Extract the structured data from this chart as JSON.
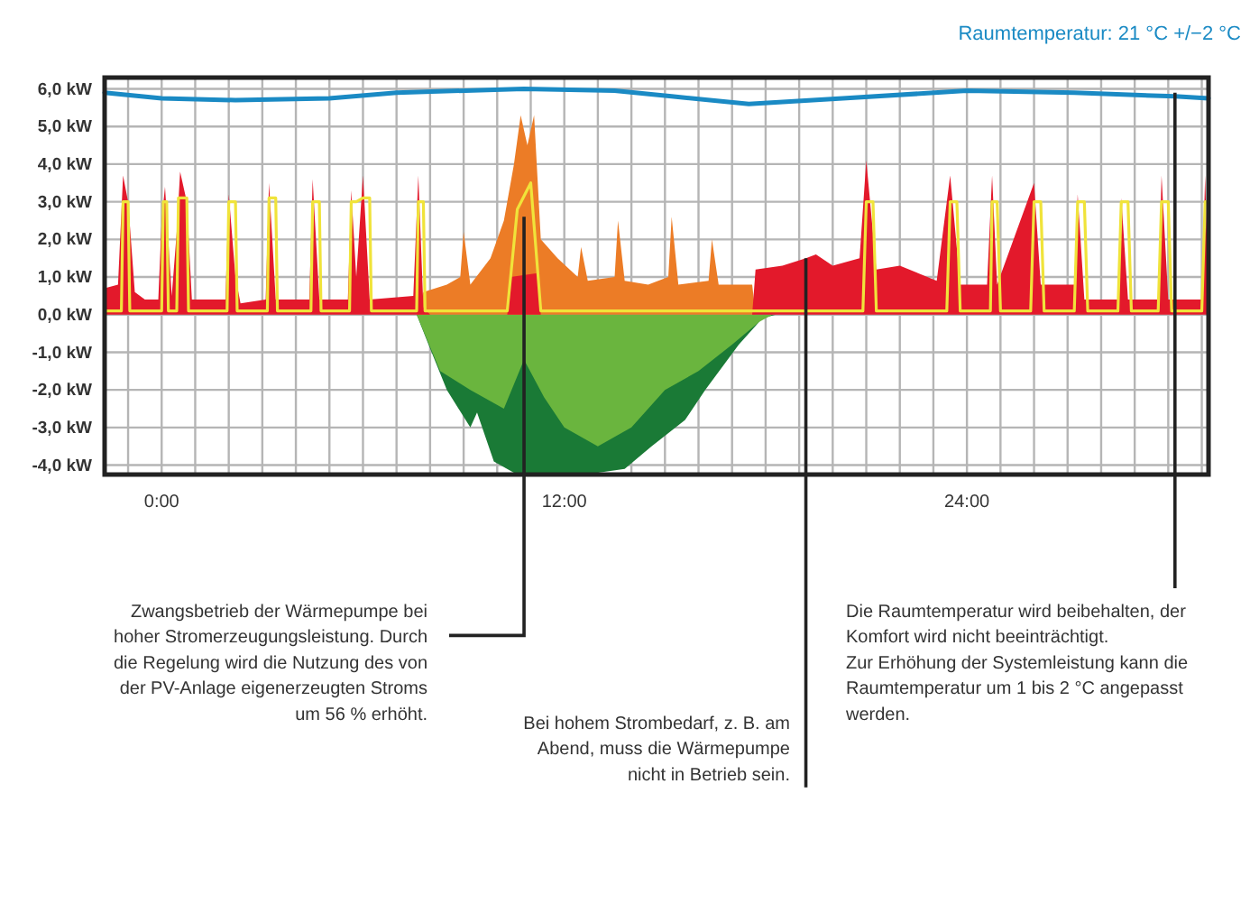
{
  "chart_data": {
    "type": "area",
    "xlim": [
      -1.7,
      31.2
    ],
    "ylim": [
      -4.25,
      6.3
    ],
    "xticks": [
      {
        "value": -1,
        "label": null
      },
      {
        "value": 0,
        "label": "0:00"
      },
      {
        "value": 1,
        "label": null
      },
      {
        "value": 2,
        "label": null
      },
      {
        "value": 3,
        "label": null
      },
      {
        "value": 4,
        "label": null
      },
      {
        "value": 5,
        "label": null
      },
      {
        "value": 6,
        "label": null
      },
      {
        "value": 7,
        "label": null
      },
      {
        "value": 8,
        "label": null
      },
      {
        "value": 9,
        "label": null
      },
      {
        "value": 10,
        "label": null
      },
      {
        "value": 11,
        "label": null
      },
      {
        "value": 12,
        "label": "12:00"
      },
      {
        "value": 13,
        "label": null
      },
      {
        "value": 14,
        "label": null
      },
      {
        "value": 15,
        "label": null
      },
      {
        "value": 16,
        "label": null
      },
      {
        "value": 17,
        "label": null
      },
      {
        "value": 18,
        "label": null
      },
      {
        "value": 19,
        "label": null
      },
      {
        "value": 20,
        "label": null
      },
      {
        "value": 21,
        "label": null
      },
      {
        "value": 22,
        "label": null
      },
      {
        "value": 23,
        "label": null
      },
      {
        "value": 24,
        "label": "24:00"
      },
      {
        "value": 25,
        "label": null
      },
      {
        "value": 26,
        "label": null
      },
      {
        "value": 27,
        "label": null
      },
      {
        "value": 28,
        "label": null
      },
      {
        "value": 29,
        "label": null
      },
      {
        "value": 30,
        "label": null
      },
      {
        "value": 31,
        "label": null
      }
    ],
    "yticks": [
      {
        "value": -4,
        "label": "-4,0 kW"
      },
      {
        "value": -3,
        "label": "-3,0 kW"
      },
      {
        "value": -2,
        "label": "-2,0 kW"
      },
      {
        "value": -1,
        "label": "-1,0 kW"
      },
      {
        "value": 0,
        "label": "0,0 kW"
      },
      {
        "value": 1,
        "label": "1,0 kW"
      },
      {
        "value": 2,
        "label": "2,0 kW"
      },
      {
        "value": 3,
        "label": "3,0 kW"
      },
      {
        "value": 4,
        "label": "4,0 kW"
      },
      {
        "value": 5,
        "label": "5,0 kW"
      },
      {
        "value": 6,
        "label": "6,0 kW"
      }
    ],
    "grid": true,
    "series": [
      {
        "color": "#1a7a36",
        "x": [
          7.6,
          8.0,
          8.5,
          9.2,
          9.4,
          9.9,
          10.5,
          11.0,
          12.0,
          13.0,
          13.8,
          14.6,
          15.6,
          16.2,
          17.2,
          17.9,
          18.3
        ],
        "values": [
          0,
          -0.9,
          -2.0,
          -3.0,
          -2.6,
          -3.9,
          -4.2,
          -4.2,
          -4.2,
          -4.2,
          -4.1,
          -3.5,
          -2.8,
          -2.0,
          -0.8,
          -0.1,
          0
        ]
      },
      {
        "color": "#6ab53e",
        "x": [
          7.6,
          8.3,
          9.2,
          10.2,
          10.8,
          11.4,
          12.0,
          13.0,
          14.0,
          15.0,
          16.0,
          17.0,
          17.8,
          18.2
        ],
        "values": [
          0,
          -1.5,
          -2.0,
          -2.5,
          -1.2,
          -2.2,
          -3.0,
          -3.5,
          -3.0,
          -2.0,
          -1.5,
          -0.8,
          -0.2,
          0
        ]
      },
      {
        "color": "#ec7c26",
        "x": [
          7.6,
          7.8,
          8.5,
          8.9,
          9.0,
          9.2,
          9.8,
          10.2,
          10.5,
          10.7,
          10.9,
          11.1,
          11.3,
          11.8,
          12.4,
          12.5,
          12.7,
          13.5,
          13.6,
          13.8,
          14.5,
          15.1,
          15.2,
          15.4,
          16.3,
          16.4,
          16.6,
          17.6,
          17.7
        ],
        "values": [
          0,
          0.6,
          0.8,
          1.0,
          2.2,
          0.8,
          1.5,
          2.5,
          4.0,
          5.3,
          4.5,
          5.3,
          2.0,
          1.5,
          1.0,
          1.8,
          0.9,
          1.0,
          2.5,
          0.9,
          0.8,
          1.0,
          2.6,
          0.8,
          0.9,
          2.0,
          0.8,
          0.8,
          0
        ]
      },
      {
        "color": "#e3192b",
        "x": [
          -1.7,
          -1.3,
          -1.15,
          -1.0,
          -0.8,
          -0.5,
          -0.1,
          0.0,
          0.1,
          0.3,
          0.45,
          0.55,
          0.75,
          0.9,
          1.9,
          2.0,
          2.2,
          2.35,
          3.1,
          3.2,
          3.4,
          4.4,
          4.5,
          4.7,
          5.55,
          5.65,
          5.8,
          6.0,
          6.2,
          7.5,
          7.65,
          7.8,
          8.0,
          10.3,
          10.4,
          11.2,
          11.3,
          17.6,
          17.7,
          18.5,
          19.2,
          19.5,
          20.0,
          20.8,
          21.0,
          21.3,
          22.0,
          23.1,
          23.5,
          23.8,
          24.6,
          24.75,
          24.9,
          26.0,
          26.2,
          27.2,
          27.3,
          27.5,
          28.5,
          28.6,
          28.8,
          29.7,
          29.8,
          30.0,
          31.0,
          31.1,
          31.2
        ],
        "values": [
          0.7,
          0.8,
          3.7,
          3.0,
          0.6,
          0.4,
          0.4,
          2.5,
          3.4,
          0.5,
          2.2,
          3.8,
          3.0,
          0.4,
          0.4,
          3.2,
          1.0,
          0.3,
          0.4,
          3.5,
          0.4,
          0.4,
          3.6,
          0.4,
          0.4,
          3.3,
          1.0,
          3.7,
          0.4,
          0.5,
          3.7,
          0.2,
          0,
          0,
          1.0,
          1.1,
          0,
          0,
          1.2,
          1.3,
          1.5,
          1.6,
          1.3,
          1.5,
          4.1,
          1.2,
          1.3,
          0.9,
          3.7,
          0.8,
          0.8,
          3.7,
          0.8,
          3.5,
          0.8,
          0.8,
          3.2,
          0.4,
          0.4,
          3.1,
          0.4,
          0.4,
          3.7,
          0.4,
          0.4,
          3.7,
          0.3
        ]
      },
      {
        "type": "line",
        "color": "#f0e33a",
        "x": [
          -1.7,
          -1.2,
          -1.15,
          -1.0,
          -0.95,
          0.0,
          0.05,
          0.15,
          0.2,
          0.45,
          0.5,
          0.75,
          0.8,
          1.95,
          2.0,
          2.2,
          2.25,
          3.15,
          3.2,
          3.4,
          3.45,
          4.45,
          4.5,
          4.7,
          4.75,
          5.6,
          5.65,
          5.8,
          6.0,
          6.2,
          6.25,
          7.6,
          7.65,
          7.8,
          7.85,
          10.3,
          10.6,
          11.0,
          11.3,
          17.7,
          20.9,
          21.0,
          21.2,
          21.3,
          23.4,
          23.5,
          23.7,
          23.8,
          24.7,
          24.75,
          24.9,
          25.0,
          25.9,
          26.0,
          26.2,
          26.3,
          27.2,
          27.3,
          27.5,
          27.6,
          28.5,
          28.6,
          28.8,
          28.9,
          29.7,
          29.8,
          30.0,
          30.1,
          31.0,
          31.1,
          31.2
        ],
        "values": [
          0.1,
          0.1,
          3.0,
          3.0,
          0.1,
          0.1,
          3.0,
          3.0,
          0.1,
          0.1,
          3.1,
          3.1,
          0.1,
          0.1,
          3.0,
          3.0,
          0.1,
          0.1,
          3.1,
          3.1,
          0.1,
          0.1,
          3.0,
          3.0,
          0.1,
          0.1,
          3.0,
          3.0,
          3.1,
          3.1,
          0.1,
          0.1,
          3.0,
          3.0,
          0.1,
          0.1,
          2.8,
          3.5,
          0.1,
          0.1,
          0.1,
          3.0,
          3.0,
          0.1,
          0.1,
          3.0,
          3.0,
          0.1,
          0.1,
          3.0,
          3.0,
          0.1,
          0.1,
          3.0,
          3.0,
          0.1,
          0.1,
          3.0,
          3.0,
          0.1,
          0.1,
          3.0,
          3.0,
          0.1,
          0.1,
          3.0,
          3.0,
          0.1,
          0.1,
          3.0,
          3.0
        ]
      },
      {
        "type": "line",
        "name": "Raumtemperatur: 21 °C +/−2 °C",
        "color": "#1a8ac4",
        "x": [
          -1.7,
          0.0,
          2.2,
          5.0,
          7.0,
          10.8,
          13.5,
          15.2,
          17.5,
          20.3,
          24.0,
          27.2,
          30.2,
          31.2
        ],
        "values": [
          5.9,
          5.75,
          5.7,
          5.75,
          5.9,
          6.0,
          5.95,
          5.8,
          5.6,
          5.75,
          5.95,
          5.9,
          5.8,
          5.75
        ]
      }
    ],
    "annotations": [
      {
        "text": "Zwangsbetrieb der Wärmepumpe bei hoher Stromerzeugungsleistung. Durch die Regelung wird die Nutzung des von der PV-Anlage eigenerzeugten Stroms um 56 % erhöht.",
        "x": 10.8,
        "y": 2.6
      },
      {
        "text": "Bei hohem Strombedarf, z. B. am Abend, muss die Wärmepumpe nicht in Betrieb sein.",
        "x": 19.2,
        "y": 1.5
      },
      {
        "text": "Die Raumtemperatur wird beibehalten, der Komfort wird nicht beeinträchtigt.\nZur Erhöhung der Systemleistung kann die Raumtemperatur um 1 bis 2 °C angepasst werden.",
        "x": 30.2,
        "y": 5.9
      }
    ]
  }
}
